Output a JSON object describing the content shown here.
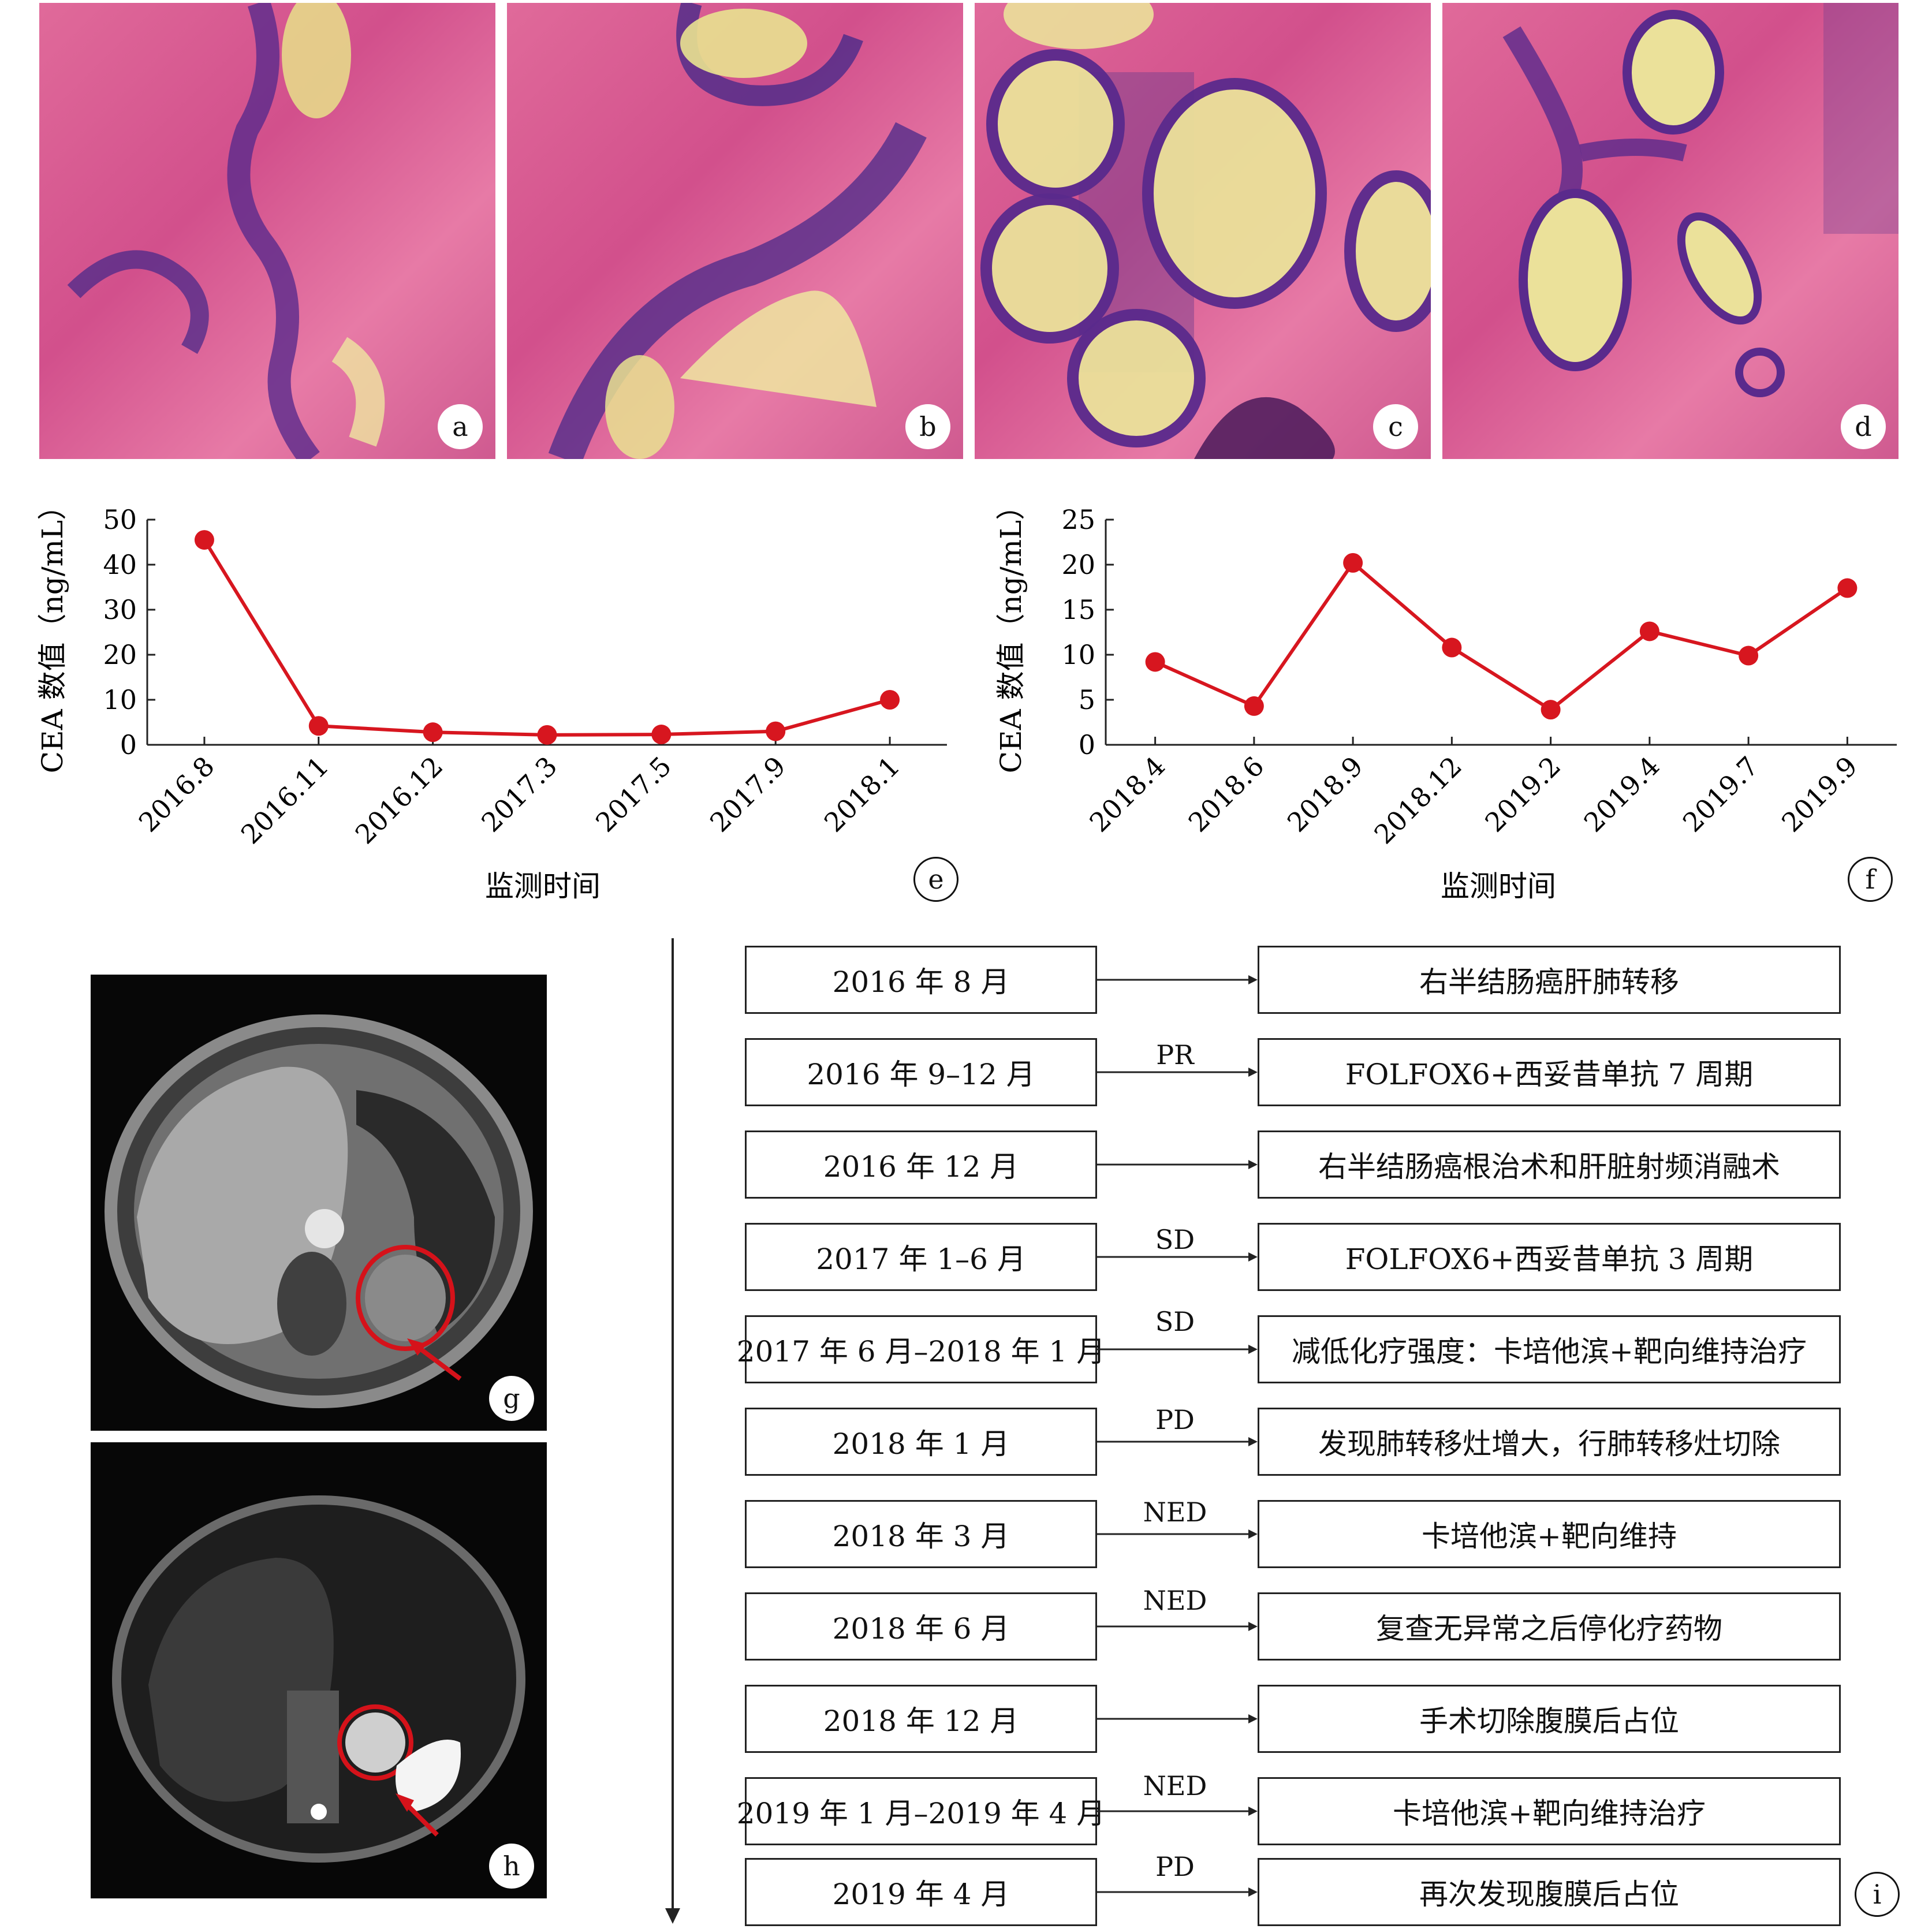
{
  "panels": {
    "a": "a",
    "b": "b",
    "c": "c",
    "d": "d",
    "g": "g",
    "h": "h",
    "e": "e",
    "f": "f",
    "i": "i"
  },
  "chart_data": [
    {
      "type": "line",
      "panel": "e",
      "ylabel": "CEA 数值（ng/mL）",
      "xlabel": "监测时间",
      "categories": [
        "2016.8",
        "2016.11",
        "2016.12",
        "2017.3",
        "2017.5",
        "2017.9",
        "2018.1"
      ],
      "values": [
        45.5,
        4.2,
        2.8,
        2.2,
        2.3,
        3.0,
        10.0
      ],
      "ylim": [
        0,
        50
      ],
      "yticks": [
        "0",
        "10",
        "20",
        "30",
        "40",
        "50"
      ],
      "color": "#d7161f"
    },
    {
      "type": "line",
      "panel": "f",
      "ylabel": "CEA 数值（ng/mL）",
      "xlabel": "监测时间",
      "categories": [
        "2018.4",
        "2018.6",
        "2018.9",
        "2018.12",
        "2019.2",
        "2019.4",
        "2019.7",
        "2019.9"
      ],
      "values": [
        9.2,
        4.3,
        20.2,
        10.8,
        3.9,
        12.6,
        9.9,
        17.4
      ],
      "ylim": [
        0,
        25
      ],
      "yticks": [
        "0",
        "5",
        "10",
        "15",
        "20",
        "25"
      ],
      "color": "#d7161f"
    }
  ],
  "timeline": [
    {
      "date": "2016 年 8 月",
      "label": "",
      "event": "右半结肠癌肝肺转移"
    },
    {
      "date": "2016 年 9–12 月",
      "label": "PR",
      "event": "FOLFOX6+西妥昔单抗 7 周期"
    },
    {
      "date": "2016 年 12 月",
      "label": "",
      "event": "右半结肠癌根治术和肝脏射频消融术"
    },
    {
      "date": "2017 年 1–6 月",
      "label": "SD",
      "event": "FOLFOX6+西妥昔单抗 3 周期"
    },
    {
      "date": "2017 年 6 月–2018 年 1 月",
      "label": "SD",
      "event": "减低化疗强度：卡培他滨+靶向维持治疗"
    },
    {
      "date": "2018 年 1 月",
      "label": "PD",
      "event": "发现肺转移灶增大，行肺转移灶切除"
    },
    {
      "date": "2018 年 3 月",
      "label": "NED",
      "event": "卡培他滨+靶向维持"
    },
    {
      "date": "2018 年 6 月",
      "label": "NED",
      "event": "复查无异常之后停化疗药物"
    },
    {
      "date": "2018 年 12 月",
      "label": "",
      "event": "手术切除腹膜后占位"
    },
    {
      "date": "2019 年 1 月–2019 年 4 月",
      "label": "NED",
      "event": "卡培他滨+靶向维持治疗"
    },
    {
      "date": "2019 年 4 月",
      "label": "PD",
      "event": "再次发现腹膜后占位"
    }
  ]
}
